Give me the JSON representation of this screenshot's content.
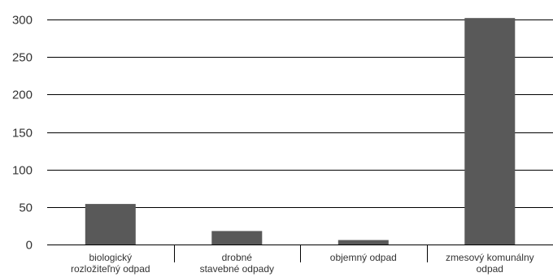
{
  "chart_data": {
    "type": "bar",
    "categories": [
      [
        "biologický",
        "rozložiteľný odpad"
      ],
      [
        "drobné",
        "stavebné odpady"
      ],
      [
        "objemný odpad"
      ],
      [
        "zmesový komunálny",
        "odpad"
      ]
    ],
    "series": [
      {
        "values": [
          54,
          18,
          6,
          302
        ]
      }
    ],
    "ylim": [
      0,
      300
    ],
    "yticks": [
      0,
      50,
      100,
      150,
      200,
      250,
      300
    ],
    "grid": true,
    "bar_color": "#595959",
    "grid_color": "#000000"
  }
}
